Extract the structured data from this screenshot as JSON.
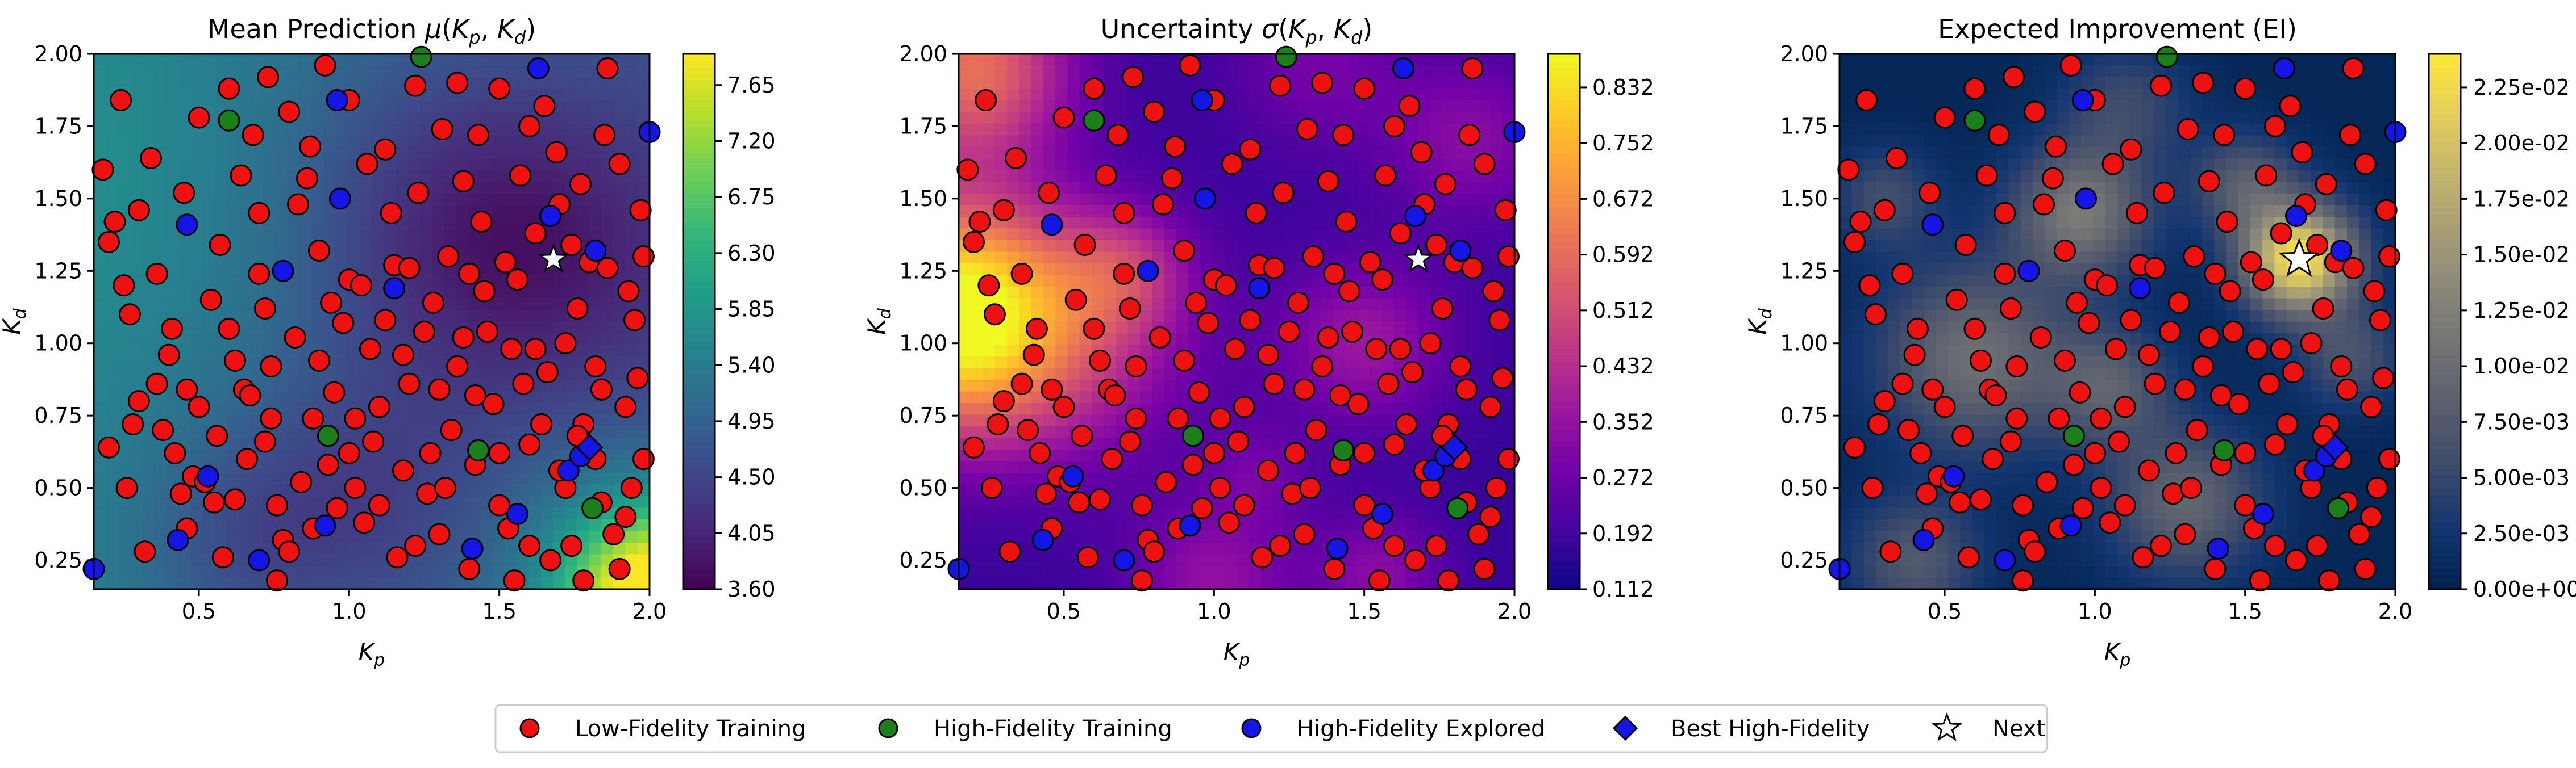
{
  "chart_data": [
    {
      "type": "heatmap",
      "title": "Mean Prediction",
      "title_math": "μ(Kp, Kd)",
      "xlabel": "Kp",
      "ylabel": "Kd",
      "xlim": [
        0.15,
        2.0
      ],
      "ylim": [
        0.15,
        2.0
      ],
      "xticks": [
        "0.5",
        "1.0",
        "1.5",
        "2.0"
      ],
      "yticks": [
        "0.25",
        "0.50",
        "0.75",
        "1.00",
        "1.25",
        "1.50",
        "1.75",
        "2.00"
      ],
      "colormap": "viridis",
      "color_range": [
        3.6,
        7.9
      ],
      "colorbar_ticks": [
        "3.60",
        "4.05",
        "4.50",
        "4.95",
        "5.40",
        "5.85",
        "6.30",
        "6.75",
        "7.20",
        "7.65"
      ]
    },
    {
      "type": "heatmap",
      "title": "Uncertainty",
      "title_math": "σ(Kp, Kd)",
      "xlabel": "Kp",
      "ylabel": "Kd",
      "xlim": [
        0.15,
        2.0
      ],
      "ylim": [
        0.15,
        2.0
      ],
      "xticks": [
        "0.5",
        "1.0",
        "1.5",
        "2.0"
      ],
      "yticks": [
        "0.25",
        "0.50",
        "0.75",
        "1.00",
        "1.25",
        "1.50",
        "1.75",
        "2.00"
      ],
      "colormap": "plasma",
      "color_range": [
        0.112,
        0.88
      ],
      "colorbar_ticks": [
        "0.112",
        "0.192",
        "0.272",
        "0.352",
        "0.432",
        "0.512",
        "0.592",
        "0.672",
        "0.752",
        "0.832"
      ]
    },
    {
      "type": "heatmap",
      "title": "Expected Improvement (EI)",
      "title_math": "",
      "xlabel": "Kp",
      "ylabel": "Kd",
      "xlim": [
        0.15,
        2.0
      ],
      "ylim": [
        0.15,
        2.0
      ],
      "xticks": [
        "0.5",
        "1.0",
        "1.5",
        "2.0"
      ],
      "yticks": [
        "0.25",
        "0.50",
        "0.75",
        "1.00",
        "1.25",
        "1.50",
        "1.75",
        "2.00"
      ],
      "colormap": "cividis",
      "color_range": [
        0.0,
        0.024
      ],
      "colorbar_ticks": [
        "0.00e+00",
        "2.50e-03",
        "5.00e-03",
        "7.50e-03",
        "1.00e-02",
        "1.25e-02",
        "1.50e-02",
        "1.75e-02",
        "2.00e-02",
        "2.25e-02"
      ]
    }
  ],
  "points": {
    "low_fidelity": [
      [
        0.2,
        1.35
      ],
      [
        0.22,
        1.42
      ],
      [
        0.25,
        1.2
      ],
      [
        0.27,
        1.1
      ],
      [
        0.3,
        0.8
      ],
      [
        0.36,
        0.86
      ],
      [
        0.38,
        0.7
      ],
      [
        0.41,
        1.05
      ],
      [
        0.44,
        0.48
      ],
      [
        0.46,
        0.36
      ],
      [
        0.48,
        0.54
      ],
      [
        0.52,
        0.52
      ],
      [
        0.55,
        0.45
      ],
      [
        0.57,
        1.34
      ],
      [
        0.6,
        1.05
      ],
      [
        0.62,
        0.94
      ],
      [
        0.65,
        0.84
      ],
      [
        0.67,
        0.82
      ],
      [
        0.7,
        1.45
      ],
      [
        0.72,
        1.12
      ],
      [
        0.74,
        0.92
      ],
      [
        0.76,
        0.44
      ],
      [
        0.78,
        0.32
      ],
      [
        0.8,
        0.28
      ],
      [
        0.83,
        1.48
      ],
      [
        0.86,
        1.57
      ],
      [
        0.88,
        0.74
      ],
      [
        0.9,
        1.32
      ],
      [
        0.93,
        0.58
      ],
      [
        0.95,
        0.83
      ],
      [
        0.98,
        1.07
      ],
      [
        1.0,
        1.22
      ],
      [
        1.02,
        0.5
      ],
      [
        1.05,
        0.38
      ],
      [
        1.07,
        0.98
      ],
      [
        1.1,
        0.78
      ],
      [
        1.12,
        1.67
      ],
      [
        1.15,
        1.27
      ],
      [
        1.18,
        0.56
      ],
      [
        1.2,
        0.86
      ],
      [
        1.22,
        1.89
      ],
      [
        1.25,
        1.04
      ],
      [
        1.27,
        0.62
      ],
      [
        1.3,
        0.34
      ],
      [
        1.33,
        1.3
      ],
      [
        1.36,
        0.92
      ],
      [
        1.38,
        1.56
      ],
      [
        1.4,
        0.22
      ],
      [
        1.43,
        1.72
      ],
      [
        1.45,
        1.18
      ],
      [
        1.48,
        0.79
      ],
      [
        1.5,
        0.44
      ],
      [
        1.52,
        1.28
      ],
      [
        1.55,
        0.18
      ],
      [
        1.57,
        1.58
      ],
      [
        1.6,
        0.65
      ],
      [
        1.62,
        0.98
      ],
      [
        1.65,
        1.82
      ],
      [
        1.67,
        0.25
      ],
      [
        1.7,
        1.48
      ],
      [
        1.72,
        0.5
      ],
      [
        1.74,
        0.3
      ],
      [
        1.76,
        1.12
      ],
      [
        1.78,
        0.72
      ],
      [
        1.8,
        1.28
      ],
      [
        1.82,
        0.92
      ],
      [
        1.84,
        0.45
      ],
      [
        1.86,
        1.95
      ],
      [
        1.88,
        0.34
      ],
      [
        1.9,
        1.62
      ],
      [
        1.92,
        0.78
      ],
      [
        1.95,
        1.08
      ],
      [
        1.97,
        1.46
      ],
      [
        1.98,
        0.6
      ],
      [
        0.18,
        1.6
      ],
      [
        0.24,
        1.84
      ],
      [
        0.34,
        1.64
      ],
      [
        0.45,
        1.52
      ],
      [
        0.5,
        1.78
      ],
      [
        0.6,
        1.88
      ],
      [
        0.64,
        1.58
      ],
      [
        0.68,
        1.72
      ],
      [
        0.73,
        1.92
      ],
      [
        0.8,
        1.8
      ],
      [
        0.87,
        1.68
      ],
      [
        0.92,
        1.96
      ],
      [
        1.0,
        1.84
      ],
      [
        1.06,
        1.62
      ],
      [
        1.14,
        1.45
      ],
      [
        1.23,
        1.52
      ],
      [
        1.31,
        1.74
      ],
      [
        1.36,
        1.9
      ],
      [
        1.44,
        1.42
      ],
      [
        1.5,
        1.88
      ],
      [
        1.6,
        1.75
      ],
      [
        1.69,
        1.66
      ],
      [
        1.77,
        1.55
      ],
      [
        1.85,
        1.72
      ],
      [
        0.2,
        0.64
      ],
      [
        0.26,
        0.5
      ],
      [
        0.32,
        0.28
      ],
      [
        0.4,
        0.96
      ],
      [
        0.56,
        0.68
      ],
      [
        0.66,
        0.6
      ],
      [
        0.72,
        0.66
      ],
      [
        0.84,
        0.52
      ],
      [
        0.96,
        0.43
      ],
      [
        1.08,
        0.66
      ],
      [
        1.16,
        0.26
      ],
      [
        1.26,
        0.48
      ],
      [
        1.34,
        0.7
      ],
      [
        1.42,
        0.58
      ],
      [
        1.53,
        0.36
      ],
      [
        1.58,
        0.86
      ],
      [
        1.64,
        0.72
      ],
      [
        1.72,
        1.0
      ],
      [
        1.82,
        0.6
      ],
      [
        1.9,
        0.22
      ],
      [
        1.96,
        0.88
      ],
      [
        0.3,
        1.46
      ],
      [
        0.36,
        1.24
      ],
      [
        0.54,
        1.15
      ],
      [
        0.7,
        1.24
      ],
      [
        0.82,
        1.02
      ],
      [
        0.94,
        1.14
      ],
      [
        1.04,
        1.2
      ],
      [
        1.12,
        1.08
      ],
      [
        1.2,
        1.26
      ],
      [
        1.28,
        1.14
      ],
      [
        1.38,
        1.02
      ],
      [
        1.46,
        1.04
      ],
      [
        1.56,
        1.22
      ],
      [
        1.62,
        1.38
      ],
      [
        1.74,
        1.34
      ],
      [
        1.86,
        1.26
      ],
      [
        1.93,
        1.18
      ],
      [
        0.42,
        0.62
      ],
      [
        0.5,
        0.78
      ],
      [
        0.58,
        0.26
      ],
      [
        0.76,
        0.18
      ],
      [
        0.88,
        0.36
      ],
      [
        1.0,
        0.62
      ],
      [
        1.1,
        0.44
      ],
      [
        1.22,
        0.3
      ],
      [
        1.32,
        0.5
      ],
      [
        1.42,
        0.82
      ],
      [
        1.5,
        0.62
      ],
      [
        1.6,
        0.3
      ],
      [
        1.7,
        0.56
      ],
      [
        1.78,
        0.18
      ],
      [
        1.94,
        0.5
      ],
      [
        0.28,
        0.72
      ],
      [
        0.46,
        0.84
      ],
      [
        0.62,
        0.46
      ],
      [
        0.74,
        0.74
      ],
      [
        0.9,
        0.94
      ],
      [
        1.02,
        0.74
      ],
      [
        1.18,
        0.96
      ],
      [
        1.3,
        0.84
      ],
      [
        1.4,
        1.24
      ],
      [
        1.54,
        0.98
      ],
      [
        1.66,
        0.9
      ],
      [
        1.76,
        0.68
      ],
      [
        1.84,
        0.84
      ],
      [
        1.92,
        0.4
      ],
      [
        1.98,
        1.3
      ]
    ],
    "high_fidelity": [
      [
        0.6,
        1.77
      ],
      [
        0.93,
        0.68
      ],
      [
        1.24,
        1.99
      ],
      [
        1.43,
        0.63
      ],
      [
        1.81,
        0.43
      ]
    ],
    "high_explored": [
      [
        0.15,
        0.22
      ],
      [
        0.43,
        0.32
      ],
      [
        0.46,
        1.41
      ],
      [
        0.53,
        0.54
      ],
      [
        0.7,
        0.25
      ],
      [
        0.78,
        1.25
      ],
      [
        0.92,
        0.37
      ],
      [
        0.96,
        1.84
      ],
      [
        0.97,
        1.5
      ],
      [
        1.15,
        1.19
      ],
      [
        1.41,
        0.29
      ],
      [
        1.56,
        0.41
      ],
      [
        1.63,
        1.95
      ],
      [
        1.67,
        1.44
      ],
      [
        1.73,
        0.56
      ],
      [
        1.77,
        0.61
      ],
      [
        1.82,
        1.32
      ],
      [
        2.0,
        1.73
      ]
    ],
    "best": [
      1.8,
      0.64
    ],
    "next": [
      1.68,
      1.29
    ]
  },
  "legend": {
    "low": "Low-Fidelity Training",
    "high": "High-Fidelity Training",
    "explored": "High-Fidelity Explored",
    "best": "Best High-Fidelity",
    "next": "Next"
  },
  "colors": {
    "low_fidelity": "#ee1111",
    "high_fidelity": "#1b7f1b",
    "high_explored": "#1515e6",
    "best": "#1515e6",
    "marker_edge": "#000000"
  }
}
